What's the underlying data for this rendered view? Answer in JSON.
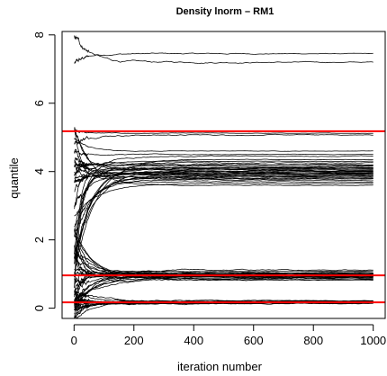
{
  "chart_data": {
    "type": "line",
    "title": "Density lnorm – RM1",
    "xlabel": "iteration number",
    "ylabel": "quantile",
    "xlim": [
      -40,
      1040
    ],
    "ylim": [
      -0.3,
      8.1
    ],
    "x_ticks": [
      0,
      200,
      400,
      600,
      800,
      1000
    ],
    "y_ticks": [
      0,
      2,
      4,
      6,
      8
    ],
    "grid": false,
    "legend": "none",
    "n_iterations": 1000,
    "reference_lines": {
      "color": "#ff0000",
      "values": [
        0.17,
        0.96,
        5.18
      ]
    },
    "series_color": "#000000",
    "series_groups": [
      {
        "start_range": [
          5.0,
          8.2
        ],
        "final_values": [
          7.45,
          7.2
        ]
      },
      {
        "start_range": [
          4.6,
          5.3
        ],
        "final_values": [
          5.12,
          5.07
        ]
      },
      {
        "start_range": [
          0.2,
          6.0
        ],
        "final_values": [
          4.6,
          4.5,
          4.45,
          4.35,
          4.3,
          4.25,
          4.2,
          4.15,
          4.12,
          4.1,
          4.08,
          4.05,
          4.02,
          4.0,
          3.98,
          3.95,
          3.92,
          3.9,
          3.88,
          3.85,
          3.82,
          3.8,
          3.75,
          3.7,
          3.65,
          3.95,
          4.05,
          4.18,
          3.85,
          3.78,
          4.0,
          3.93,
          4.1,
          3.6
        ]
      },
      {
        "start_range": [
          -0.2,
          2.5
        ],
        "final_values": [
          1.12,
          1.08,
          1.05,
          1.03,
          1.01,
          1.0,
          0.99,
          0.98,
          0.97,
          0.96,
          0.95,
          0.94,
          0.93,
          0.92,
          0.91,
          0.9,
          0.88,
          0.86,
          0.84,
          0.82,
          1.02,
          0.97,
          0.95,
          0.99,
          0.93
        ]
      },
      {
        "start_range": [
          -0.3,
          0.6
        ],
        "final_values": [
          0.22,
          0.21,
          0.2,
          0.19,
          0.18,
          0.17,
          0.17,
          0.16,
          0.15,
          0.14,
          0.13,
          0.18,
          0.16,
          0.19,
          0.15
        ]
      }
    ]
  }
}
